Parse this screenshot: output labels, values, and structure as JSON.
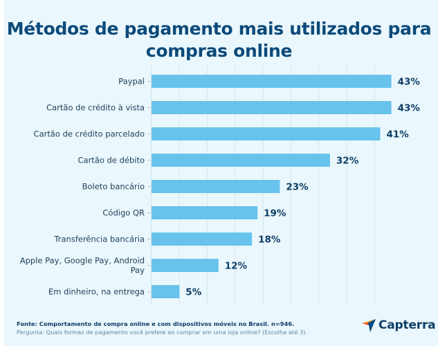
{
  "title": "Métodos de pagamento mais utilizados para compras online",
  "title_lines": [
    "Métodos de pagamento mais utilizados para",
    "compras online"
  ],
  "colors": {
    "background": "#eaf7fc",
    "bar": "#67c3ec",
    "title": "#0b4a7a",
    "value_label": "#0f3e66",
    "gridline": "#d3e6ef"
  },
  "chart_data": {
    "type": "bar",
    "orientation": "horizontal",
    "title": "Métodos de pagamento mais utilizados para compras online",
    "xlabel": "",
    "ylabel": "",
    "unit": "%",
    "xlim": [
      0,
      45
    ],
    "grid": true,
    "grid_step": 5,
    "categories": [
      "Paypal",
      "Cartão de crédito à vista",
      "Cartão de crédito parcelado",
      "Cartão de débito",
      "Boleto bancário",
      "Código QR",
      "Transferência bancária",
      "Apple Pay, Google Pay, Android Pay",
      "Em dinheiro, na entrega"
    ],
    "category_lines": [
      [
        "Paypal"
      ],
      [
        "Cartão de crédito à vista"
      ],
      [
        "Cartão de crédito parcelado"
      ],
      [
        "Cartão de débito"
      ],
      [
        "Boleto bancário"
      ],
      [
        "Código QR"
      ],
      [
        "Transferência bancária"
      ],
      [
        "Apple Pay, Google Pay, Android",
        "Pay"
      ],
      [
        "Em dinheiro, na entrega"
      ]
    ],
    "values": [
      43,
      43,
      41,
      32,
      23,
      19,
      18,
      12,
      5
    ],
    "value_labels": [
      "43%",
      "43%",
      "41%",
      "32%",
      "23%",
      "19%",
      "18%",
      "12%",
      "5%"
    ]
  },
  "footer": {
    "source": "Fonte: Comportamento de compra online e com dispositivos móveis no Brasil. n=946.",
    "question": "Pergunta: Quais formas de pagamento você prefere ao comprar em uma loja online? (Escolha até 3)."
  },
  "logo": {
    "icon": "capterra-arrow-icon",
    "text": "Capterra"
  }
}
